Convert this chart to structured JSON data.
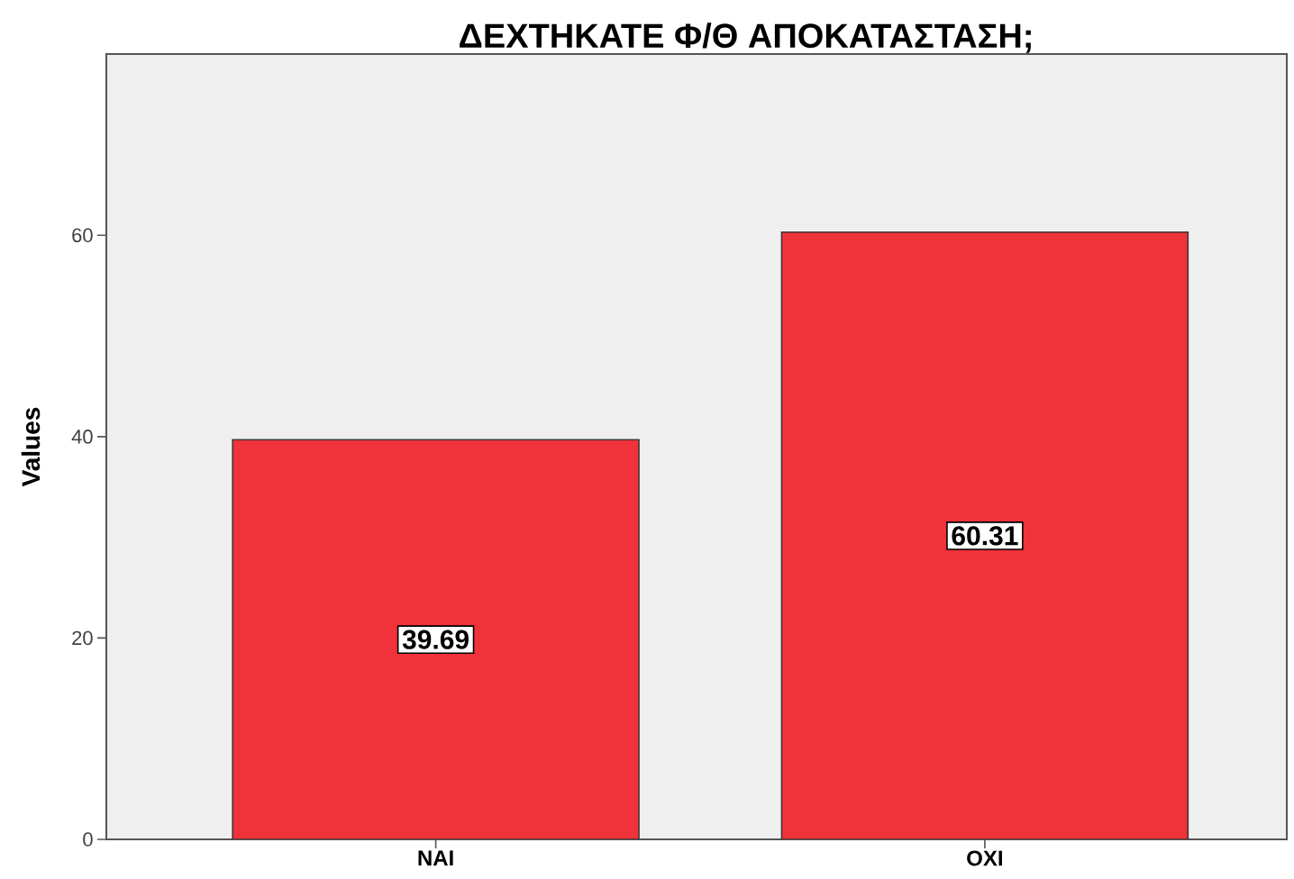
{
  "chart_data": {
    "type": "bar",
    "title": "ΔΕΧΤΗΚΑΤΕ Φ/Θ ΑΠΟΚΑΤΑΣΤΑΣΗ;",
    "ylabel": "Values",
    "categories": [
      "ΝΑΙ",
      "ΟΧΙ"
    ],
    "values": [
      39.69,
      60.31
    ],
    "color": "#f0323a",
    "ylim": [
      0,
      78
    ],
    "yticks": [
      0,
      20,
      40,
      60
    ],
    "data_labels": true
  }
}
